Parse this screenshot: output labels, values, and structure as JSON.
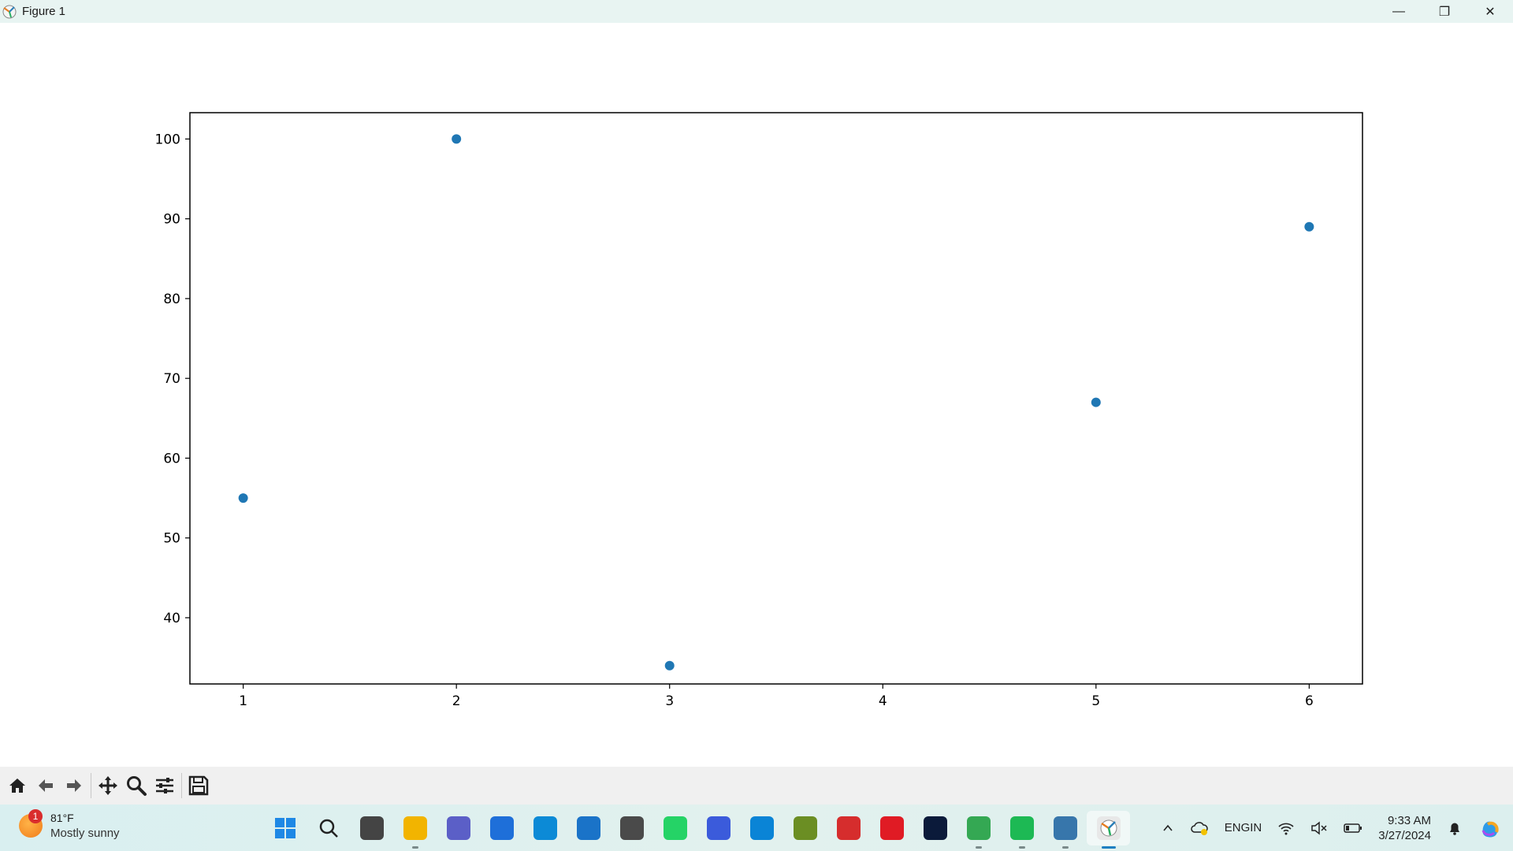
{
  "window": {
    "title": "Figure 1",
    "minimize_glyph": "—",
    "maximize_glyph": "❐",
    "close_glyph": "✕"
  },
  "chart_data": {
    "type": "scatter",
    "x": [
      1,
      2,
      3,
      5,
      6
    ],
    "y": [
      55,
      100,
      34,
      67,
      89
    ],
    "xticks": [
      1,
      2,
      3,
      4,
      5,
      6
    ],
    "yticks": [
      40,
      50,
      60,
      70,
      80,
      90,
      100
    ],
    "xlim": [
      0.75,
      6.25
    ],
    "ylim": [
      31.7,
      103.3
    ],
    "marker_color": "#1f77b4",
    "grid": false,
    "title": "",
    "xlabel": "",
    "ylabel": ""
  },
  "toolbar": {
    "buttons": [
      "home-icon",
      "back-arrow-icon",
      "forward-arrow-icon",
      "pan-icon",
      "zoom-icon",
      "subplots-icon",
      "save-icon"
    ]
  },
  "taskbar": {
    "weather": {
      "badge": "1",
      "temp": "81°F",
      "desc": "Mostly sunny"
    },
    "apps": [
      {
        "name": "start-icon",
        "color": "#1e88e5",
        "label": ""
      },
      {
        "name": "search-icon",
        "color": "#333333",
        "label": ""
      },
      {
        "name": "task-view-icon",
        "color": "#444444",
        "label": ""
      },
      {
        "name": "file-explorer-icon",
        "color": "#f2b400",
        "label": ""
      },
      {
        "name": "teams-icon",
        "color": "#5b5fc7",
        "label": ""
      },
      {
        "name": "shark-app-icon",
        "color": "#1e6fd9",
        "label": ""
      },
      {
        "name": "edge-icon",
        "color": "#0c8ad6",
        "label": ""
      },
      {
        "name": "store-icon",
        "color": "#1a73c8",
        "label": ""
      },
      {
        "name": "cube-app-icon",
        "color": "#4a4a4a",
        "label": ""
      },
      {
        "name": "whatsapp-icon",
        "color": "#25d366",
        "label": ""
      },
      {
        "name": "math-app-icon",
        "color": "#3b5bdb",
        "label": ""
      },
      {
        "name": "remote-desktop-icon",
        "color": "#0a84d6",
        "label": ""
      },
      {
        "name": "tools-app-icon",
        "color": "#6b8e23",
        "label": ""
      },
      {
        "name": "devcpp-icon",
        "color": "#d62d2d",
        "label": ""
      },
      {
        "name": "opera-icon",
        "color": "#e01b24",
        "label": ""
      },
      {
        "name": "disney-plus-icon",
        "color": "#0b1a3a",
        "label": ""
      },
      {
        "name": "chrome-icon",
        "color": "#34a853",
        "label": ""
      },
      {
        "name": "spotify-icon",
        "color": "#1db954",
        "label": ""
      },
      {
        "name": "python-icon",
        "color": "#3776ab",
        "label": ""
      },
      {
        "name": "matplotlib-figure-icon",
        "color": "#e8e8e8",
        "label": ""
      }
    ],
    "tray": {
      "lang_top": "ENG",
      "lang_bottom": "IN",
      "time": "9:33 AM",
      "date": "3/27/2024"
    }
  }
}
